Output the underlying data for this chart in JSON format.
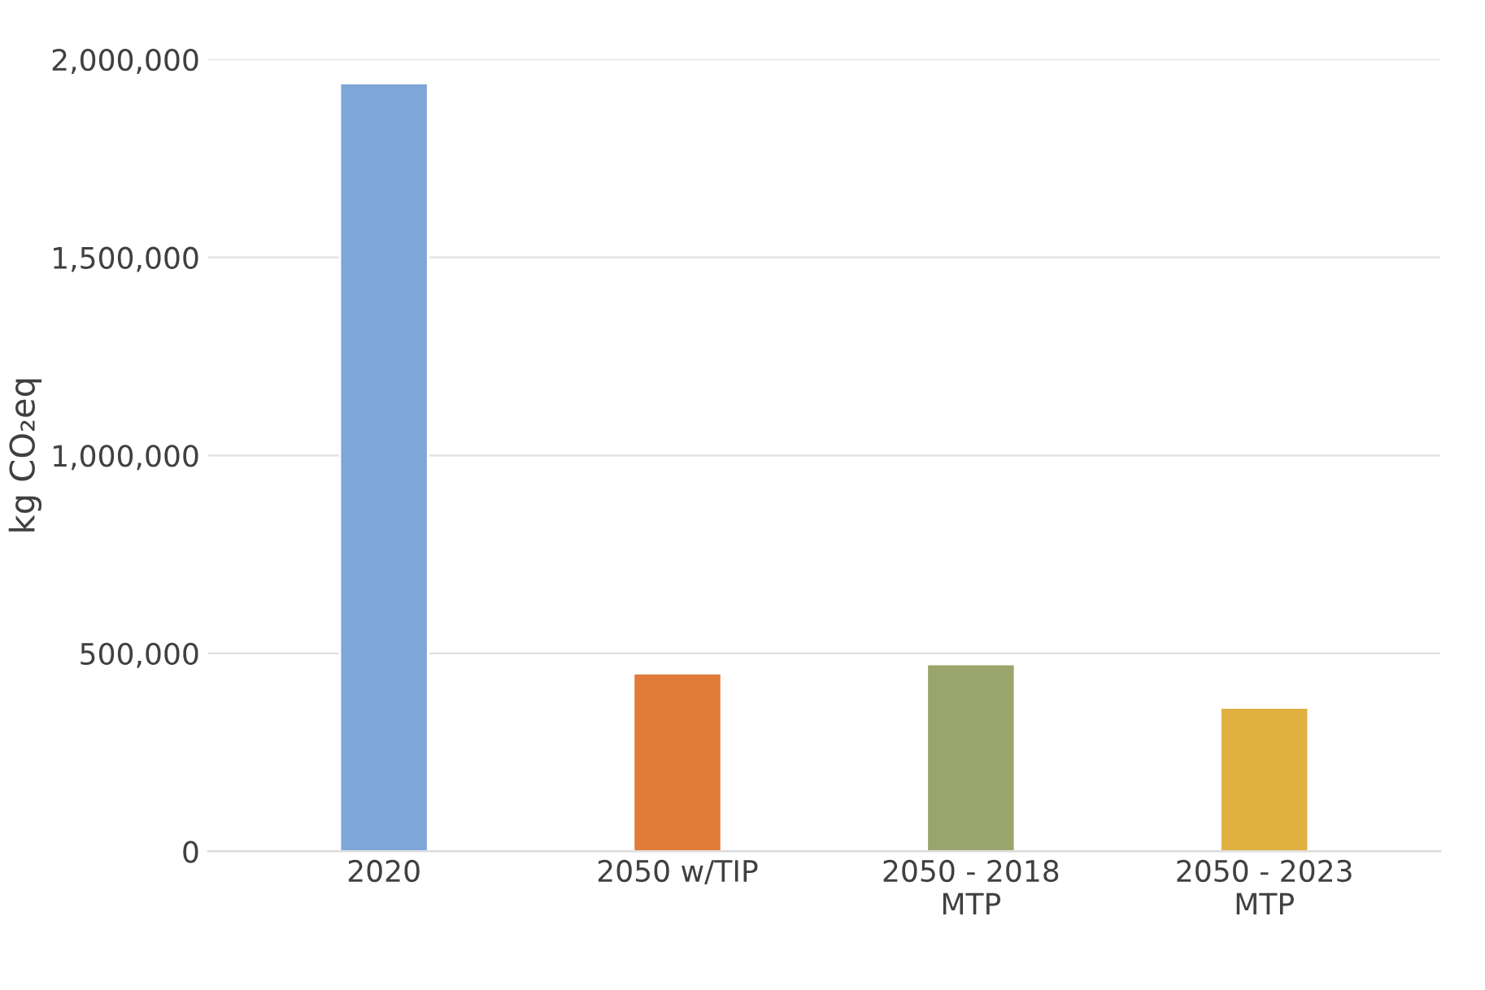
{
  "chart_data": {
    "type": "bar",
    "ylabel": "kg CO₂eq",
    "categories": [
      "2020",
      "2050 w/TIP",
      "2050 - 2018\nMTP",
      "2050 - 2023\nMTP"
    ],
    "values": [
      1940000,
      450000,
      473000,
      363000
    ],
    "colors": [
      "#7ea6d8",
      "#e07b39",
      "#9aa56c",
      "#e0b040"
    ],
    "ylim": [
      0,
      2000000
    ],
    "yticks": [
      0,
      {
        "value": 500000,
        "label": "500,000"
      },
      {
        "value": 1000000,
        "label": "1,000,000"
      },
      {
        "value": 1500000,
        "label": "1,500,000"
      },
      {
        "value": 2000000,
        "label": "2,000,000"
      }
    ],
    "grid": "y",
    "legend": false
  }
}
